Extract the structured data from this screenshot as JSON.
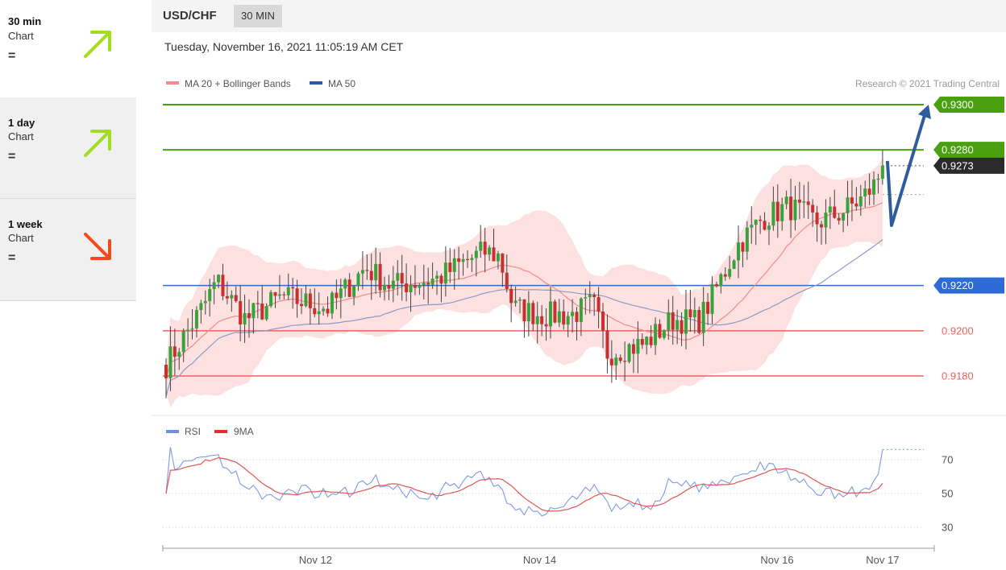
{
  "sidebar": {
    "items": [
      {
        "name": "30 min",
        "sub": "Chart",
        "eq": "=",
        "direction": "up",
        "color": "#a3dd1d"
      },
      {
        "name": "1 day",
        "sub": "Chart",
        "eq": "=",
        "direction": "up",
        "color": "#a3dd1d"
      },
      {
        "name": "1 week",
        "sub": "Chart",
        "eq": "=",
        "direction": "down",
        "color": "#f04a1d"
      }
    ]
  },
  "header": {
    "symbol": "USD/CHF",
    "period": "30 MIN"
  },
  "datetime": "Tuesday, November 16, 2021 11:05:19 AM CET",
  "copyright": "Research © 2021 Trading Central",
  "chart_data": [
    {
      "type": "candlestick",
      "legend": [
        {
          "name": "MA 20 + Bollinger Bands",
          "color": "#f28b8b"
        },
        {
          "name": "MA 50",
          "color": "#2b5aa0"
        }
      ],
      "x_ticks": [
        {
          "label": "Nov 12",
          "candle": 34
        },
        {
          "label": "Nov 14",
          "candle": 85
        },
        {
          "label": "Nov 16",
          "candle": 139
        },
        {
          "label": "Nov 17",
          "candle": 163
        }
      ],
      "ylim": [
        0.9168,
        0.931
      ],
      "candles_start": 0.9185,
      "last_price": 0.9273,
      "levels": [
        {
          "value": 0.93,
          "label": "0.9300",
          "color": "#4aa010",
          "kind": "resistance",
          "badge": true
        },
        {
          "value": 0.928,
          "label": "0.9280",
          "color": "#4aa010",
          "kind": "resistance",
          "badge": true
        },
        {
          "value": 0.922,
          "label": "0.9220",
          "color": "#2e6bd6",
          "kind": "pivot",
          "badge": true
        },
        {
          "value": 0.92,
          "label": "0.9200",
          "color": "#f06060",
          "kind": "support",
          "badge": false
        },
        {
          "value": 0.918,
          "label": "0.9180",
          "color": "#f06060",
          "kind": "support",
          "badge": false
        }
      ],
      "current_label": "0.9273",
      "forecast_arrow": [
        0.9273,
        0.9253,
        0.93
      ]
    },
    {
      "type": "line",
      "legend": [
        {
          "name": "RSI",
          "color": "#6f8fdc"
        },
        {
          "name": "9MA",
          "color": "#e52b2b"
        }
      ],
      "y_ticks": [
        "70",
        "50",
        "30"
      ],
      "ylim": [
        22,
        82
      ],
      "last_rsi": 76
    }
  ]
}
